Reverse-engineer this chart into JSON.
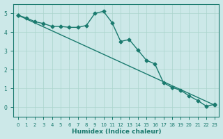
{
  "xlabel": "Humidex (Indice chaleur)",
  "ylabel": "",
  "bg_color": "#cce8e8",
  "line_color": "#1a7a6e",
  "grid_color": "#aad4cc",
  "xlim": [
    -0.5,
    23.5
  ],
  "ylim": [
    -0.5,
    5.5
  ],
  "xticks": [
    0,
    1,
    2,
    3,
    4,
    5,
    6,
    7,
    8,
    9,
    10,
    11,
    12,
    13,
    14,
    15,
    16,
    17,
    18,
    19,
    20,
    21,
    22,
    23
  ],
  "yticks": [
    0,
    1,
    2,
    3,
    4,
    5
  ],
  "series1_x": [
    0,
    1,
    2,
    3,
    4,
    5,
    6,
    7,
    8,
    9,
    10,
    11,
    12,
    13,
    14,
    15,
    16,
    17,
    18,
    19,
    20,
    21,
    22,
    23
  ],
  "series1_y": [
    4.9,
    4.75,
    4.55,
    4.45,
    4.3,
    4.3,
    4.25,
    4.25,
    4.35,
    5.0,
    5.1,
    4.5,
    3.5,
    3.6,
    3.05,
    2.5,
    2.3,
    1.3,
    1.05,
    0.9,
    0.6,
    0.35,
    0.05,
    0.15
  ],
  "series2_x": [
    0,
    23
  ],
  "series2_y": [
    4.9,
    0.1
  ],
  "marker": "D",
  "marker_size": 2.5,
  "linewidth": 1.0
}
